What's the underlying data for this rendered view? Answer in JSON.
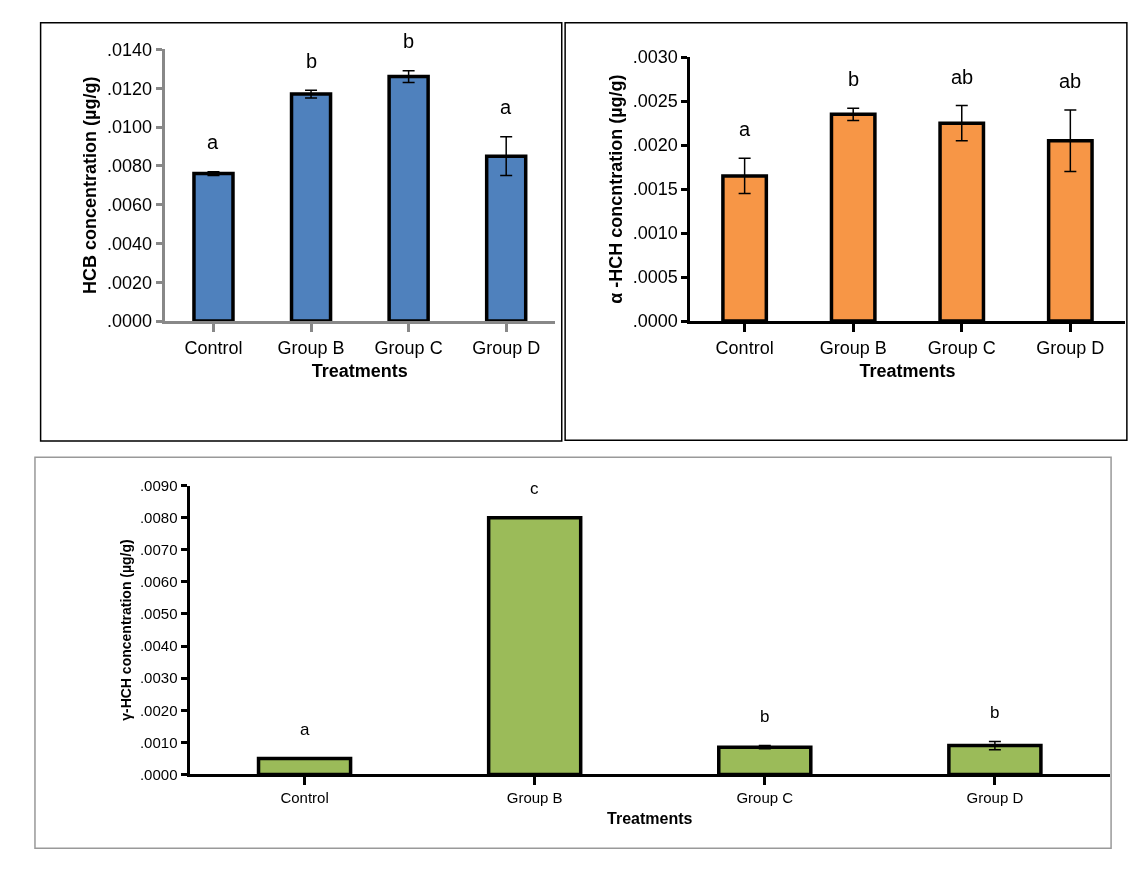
{
  "chart_data": [
    {
      "type": "bar",
      "xlabel": "Treatments",
      "ylabel": "HCB concentration (µg/g)",
      "categories": [
        "Control",
        "Group B",
        "Group C",
        "Group D"
      ],
      "series": [
        {
          "color": "#4f81bd",
          "values": [
            0.0076,
            0.0117,
            0.0126,
            0.0085
          ],
          "errors": [
            0.0001,
            0.0002,
            0.0003,
            0.001
          ]
        }
      ],
      "ylim": [
        0,
        0.014
      ],
      "yticks": [
        {
          "value": 0,
          "label": ".0000"
        },
        {
          "value": 0.002,
          "label": ".0020"
        },
        {
          "value": 0.004,
          "label": ".0040"
        },
        {
          "value": 0.006,
          "label": ".0060"
        },
        {
          "value": 0.008,
          "label": ".0080"
        },
        {
          "value": 0.01,
          "label": ".0100"
        },
        {
          "value": 0.012,
          "label": ".0120"
        },
        {
          "value": 0.014,
          "label": ".0140"
        }
      ],
      "annotations": [
        "a",
        "b",
        "b",
        "a"
      ]
    },
    {
      "type": "bar",
      "xlabel": "Treatments",
      "ylabel": "α -HCH concntration (µg/g)",
      "categories": [
        "Control",
        "Group B",
        "Group C",
        "Group D"
      ],
      "series": [
        {
          "color": "#f79646",
          "values": [
            0.00165,
            0.00235,
            0.00225,
            0.00205
          ],
          "errors": [
            0.0002,
            7e-05,
            0.0002,
            0.00035
          ]
        }
      ],
      "ylim": [
        0,
        0.003
      ],
      "yticks": [
        {
          "value": 0,
          "label": ".0000"
        },
        {
          "value": 0.0005,
          "label": ".0005"
        },
        {
          "value": 0.001,
          "label": ".0010"
        },
        {
          "value": 0.0015,
          "label": ".0015"
        },
        {
          "value": 0.002,
          "label": ".0020"
        },
        {
          "value": 0.0025,
          "label": ".0025"
        },
        {
          "value": 0.003,
          "label": ".0030"
        }
      ],
      "annotations": [
        "a",
        "b",
        "ab",
        "ab"
      ]
    },
    {
      "type": "bar",
      "xlabel": "Treatments",
      "ylabel": "γ-HCH concentration (µg/g)",
      "categories": [
        "Control",
        "Group B",
        "Group C",
        "Group D"
      ],
      "series": [
        {
          "color": "#9bbb59",
          "values": [
            0.0005,
            0.008,
            0.00085,
            0.0009
          ],
          "errors": [
            null,
            null,
            5e-05,
            0.00013
          ]
        }
      ],
      "ylim": [
        0,
        0.009
      ],
      "yticks": [
        {
          "value": 0,
          "label": ".0000"
        },
        {
          "value": 0.001,
          "label": ".0010"
        },
        {
          "value": 0.002,
          "label": ".0020"
        },
        {
          "value": 0.003,
          "label": ".0030"
        },
        {
          "value": 0.004,
          "label": ".0040"
        },
        {
          "value": 0.005,
          "label": ".0050"
        },
        {
          "value": 0.006,
          "label": ".0060"
        },
        {
          "value": 0.007,
          "label": ".0070"
        },
        {
          "value": 0.008,
          "label": ".0080"
        },
        {
          "value": 0.009,
          "label": ".0090"
        }
      ],
      "annotations": [
        "a",
        "c",
        "b",
        "b"
      ]
    }
  ]
}
